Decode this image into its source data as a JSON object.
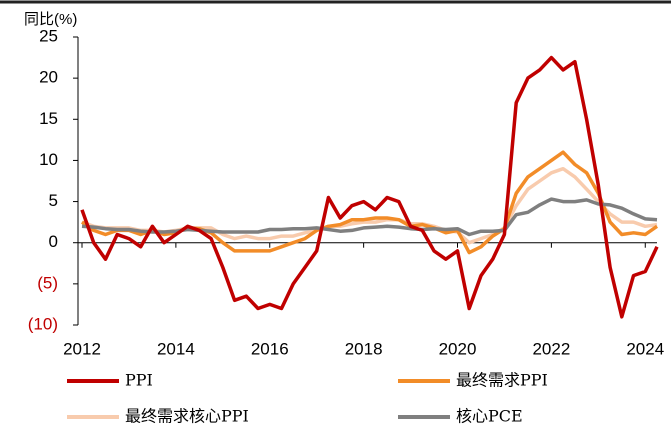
{
  "chart_data": {
    "type": "line",
    "y_axis_label": "同比(%)",
    "x": [
      2012,
      2012.25,
      2012.5,
      2012.75,
      2013,
      2013.25,
      2013.5,
      2013.75,
      2014,
      2014.25,
      2014.5,
      2014.75,
      2015,
      2015.25,
      2015.5,
      2015.75,
      2016,
      2016.25,
      2016.5,
      2016.75,
      2017,
      2017.25,
      2017.5,
      2017.75,
      2018,
      2018.25,
      2018.5,
      2018.75,
      2019,
      2019.25,
      2019.5,
      2019.75,
      2020,
      2020.25,
      2020.5,
      2020.75,
      2021,
      2021.25,
      2021.5,
      2021.75,
      2022,
      2022.25,
      2022.5,
      2022.75,
      2023,
      2023.25,
      2023.5,
      2023.75,
      2024,
      2024.25
    ],
    "series": [
      {
        "name": "PPI",
        "color": "#c00000",
        "values": [
          4,
          0,
          -2,
          1,
          0.5,
          -0.5,
          2,
          0,
          1,
          2,
          1.5,
          0.5,
          -3,
          -7,
          -6.5,
          -8,
          -7.5,
          -8,
          -5,
          -3,
          -1,
          5.5,
          3,
          4.5,
          5,
          4,
          5.5,
          5,
          2,
          1.5,
          -1,
          -2,
          -1,
          -8,
          -4,
          -2,
          1,
          17,
          20,
          21,
          22.5,
          21,
          22,
          15,
          7,
          -3,
          -9,
          -4,
          -3.5,
          -0.5
        ]
      },
      {
        "name": "最终需求PPI",
        "color": "#f28c28",
        "values": [
          2.5,
          1.5,
          1,
          1.5,
          1.5,
          1,
          1.5,
          1,
          1.2,
          1.8,
          1.7,
          1.2,
          0,
          -1,
          -1,
          -1,
          -1,
          -0.5,
          0,
          0.5,
          1.5,
          2,
          2.2,
          2.8,
          2.8,
          3,
          3,
          2.8,
          2,
          2.2,
          1.8,
          1.2,
          1.5,
          -1.2,
          -0.5,
          0.8,
          1.7,
          6,
          8,
          9,
          10,
          11,
          9.5,
          8.5,
          6,
          2.5,
          1,
          1.2,
          1,
          2
        ]
      },
      {
        "name": "最终需求核心PPI",
        "color": "#f8cbad",
        "values": [
          2.5,
          2,
          1.8,
          1.8,
          1.8,
          1.5,
          1.5,
          1.3,
          1.5,
          1.8,
          1.8,
          1.8,
          1,
          0.5,
          0.8,
          0.5,
          0.5,
          0.8,
          0.8,
          1.2,
          1.5,
          2,
          2,
          2.3,
          2.5,
          2.5,
          2.8,
          2.8,
          2.3,
          2.3,
          2,
          1.5,
          1.3,
          0,
          0.5,
          1,
          1.8,
          4.5,
          6.5,
          7.5,
          8.5,
          9,
          8,
          6.5,
          5,
          3.5,
          2.5,
          2.5,
          2,
          2.2
        ]
      },
      {
        "name": "核心PCE",
        "color": "#7f7f7f",
        "values": [
          2,
          1.9,
          1.7,
          1.6,
          1.6,
          1.4,
          1.3,
          1.3,
          1.4,
          1.6,
          1.5,
          1.4,
          1.3,
          1.3,
          1.3,
          1.3,
          1.6,
          1.6,
          1.7,
          1.7,
          1.8,
          1.6,
          1.4,
          1.5,
          1.8,
          1.9,
          2,
          1.9,
          1.7,
          1.6,
          1.7,
          1.6,
          1.7,
          1,
          1.4,
          1.4,
          1.5,
          3.4,
          3.7,
          4.6,
          5.3,
          5,
          5,
          5.2,
          4.7,
          4.6,
          4.2,
          3.5,
          2.9,
          2.8
        ]
      }
    ],
    "xlim": [
      2012,
      2024.25
    ],
    "xticks": [
      2012,
      2014,
      2016,
      2018,
      2020,
      2022,
      2024
    ],
    "ylim": [
      -10,
      25
    ],
    "yticks": [
      {
        "value": -10,
        "label": "(10)"
      },
      {
        "value": -5,
        "label": "(5)"
      },
      0,
      5,
      10,
      15,
      20,
      25
    ],
    "negative_tick_color": "#c00000",
    "grid": false,
    "legend": "bottom"
  }
}
